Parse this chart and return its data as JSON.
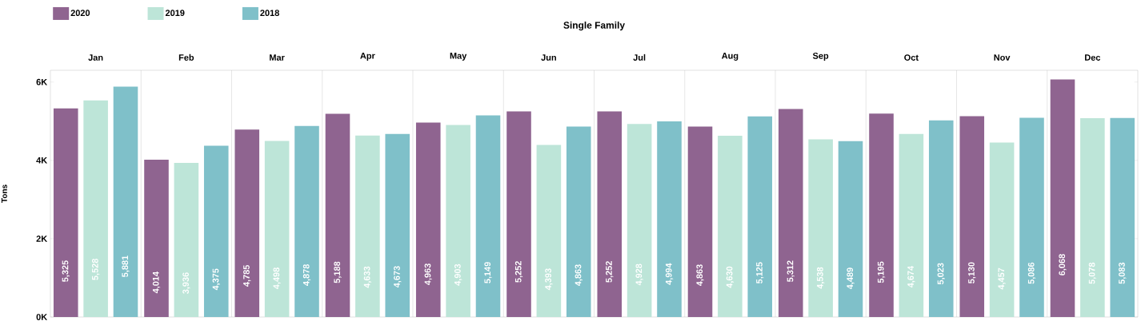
{
  "chart_data": {
    "type": "bar",
    "title": "Single Family",
    "ylabel": "Tons",
    "categories": [
      "Jan",
      "Feb",
      "Mar",
      "Apr",
      "May",
      "Jun",
      "Jul",
      "Aug",
      "Sep",
      "Oct",
      "Nov",
      "Dec"
    ],
    "series": [
      {
        "name": "2020",
        "color": "#8f6490",
        "values": [
          5325,
          4014,
          4785,
          5188,
          4963,
          5252,
          5252,
          4863,
          5312,
          5195,
          5130,
          6068
        ],
        "value_labels": [
          "5,325",
          "4,014",
          "4,785",
          "5,188",
          "4,963",
          "5,252",
          "5,252",
          "4,863",
          "5,312",
          "5,195",
          "5,130",
          "6,068"
        ]
      },
      {
        "name": "2019",
        "color": "#bde5d8",
        "values": [
          5528,
          3936,
          4498,
          4633,
          4903,
          4393,
          4928,
          4630,
          4538,
          4674,
          4457,
          5078
        ],
        "value_labels": [
          "5,528",
          "3,936",
          "4,498",
          "4,633",
          "4,903",
          "4,393",
          "4,928",
          "4,630",
          "4,538",
          "4,674",
          "4,457",
          "5,078"
        ]
      },
      {
        "name": "2018",
        "color": "#7fc0c9",
        "values": [
          5881,
          4375,
          4878,
          4673,
          5149,
          4863,
          4994,
          5125,
          4489,
          5023,
          5086,
          5083
        ],
        "value_labels": [
          "5,881",
          "4,375",
          "4,878",
          "4,673",
          "5,149",
          "4,863",
          "4,994",
          "5,125",
          "4,489",
          "5,023",
          "5,086",
          "5,083"
        ]
      }
    ],
    "ylim": [
      0,
      6300
    ],
    "yticks": [
      {
        "value": 0,
        "label": "0K"
      },
      {
        "value": 2000,
        "label": "2K"
      },
      {
        "value": 4000,
        "label": "4K"
      },
      {
        "value": 6000,
        "label": "6K"
      }
    ],
    "legend": "top left"
  }
}
